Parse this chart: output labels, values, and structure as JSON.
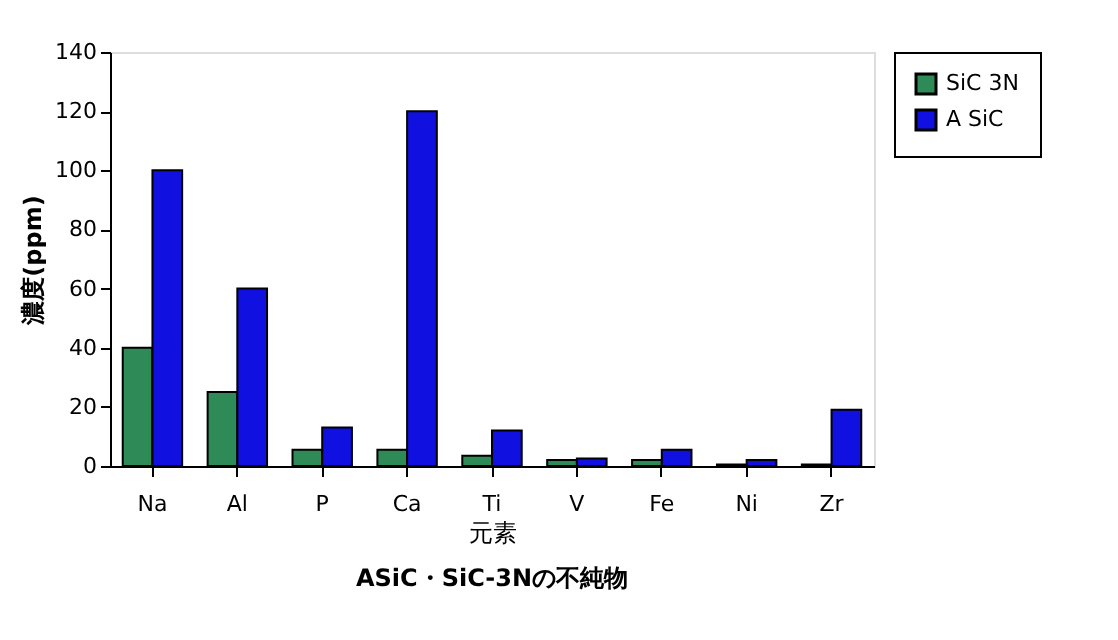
{
  "chart_data": {
    "type": "bar",
    "title": "ASiC・SiC-3Nの不純物",
    "xlabel": "元素",
    "ylabel": "濃度(ppm)",
    "categories": [
      "Na",
      "Al",
      "P",
      "Ca",
      "Ti",
      "V",
      "Fe",
      "Ni",
      "Zr"
    ],
    "series": [
      {
        "name": "SiC 3N",
        "color": "#2e8b57",
        "values": [
          40,
          25,
          5.5,
          5.5,
          3.5,
          2,
          2,
          0.5,
          0.5
        ]
      },
      {
        "name": "A SiC",
        "color": "#1010e0",
        "values": [
          100,
          60,
          13,
          120,
          12,
          2.5,
          5.5,
          2,
          19
        ]
      }
    ],
    "ylim": [
      0,
      140
    ],
    "yticks": [
      0,
      20,
      40,
      60,
      80,
      100,
      120,
      140
    ],
    "grid": false,
    "legend": "right"
  }
}
